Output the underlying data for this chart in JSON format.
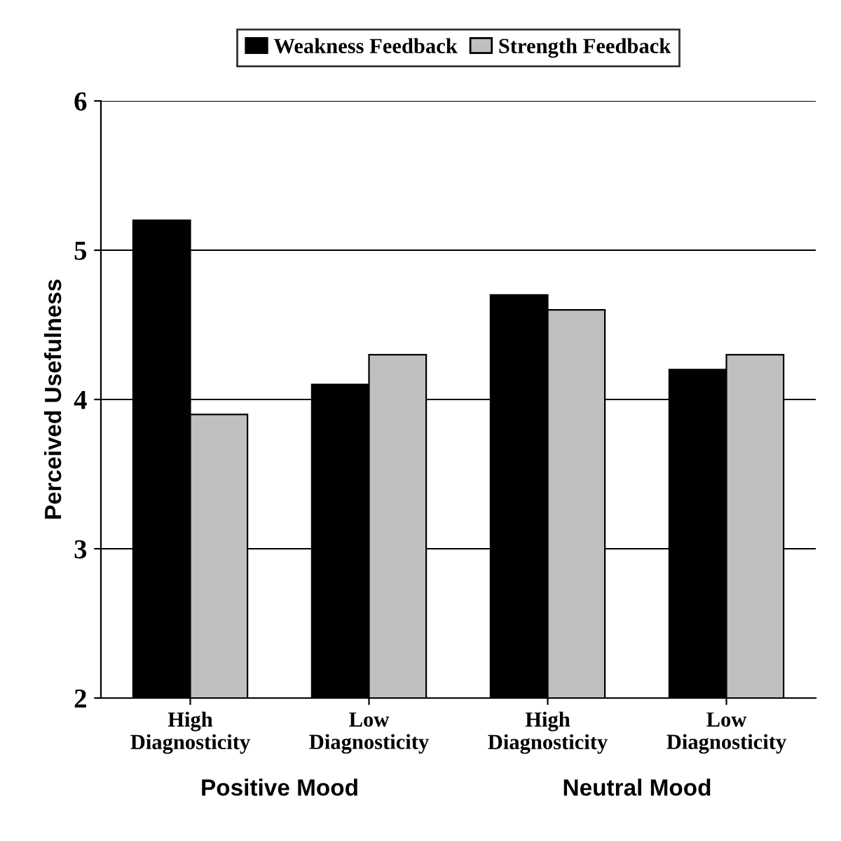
{
  "chart_data": {
    "type": "bar",
    "ylabel": "Perceived Usefulness",
    "categories": [
      "High\nDiagnosticity",
      "Low\nDiagnosticity",
      "High\nDiagnosticity",
      "Low\nDiagnosticity"
    ],
    "series": [
      {
        "name": "Weakness Feedback",
        "color": "#000000",
        "values": [
          5.2,
          4.1,
          4.7,
          4.2
        ]
      },
      {
        "name": "Strength Feedback",
        "color": "#c0c0c0",
        "values": [
          3.9,
          4.3,
          4.6,
          4.3
        ]
      }
    ],
    "annotations": [
      "Positive Mood",
      "Neutral Mood"
    ],
    "ylim": [
      2,
      6
    ],
    "yticks": [
      2,
      3,
      4,
      5,
      6
    ],
    "grid": "y",
    "legend": "top"
  }
}
